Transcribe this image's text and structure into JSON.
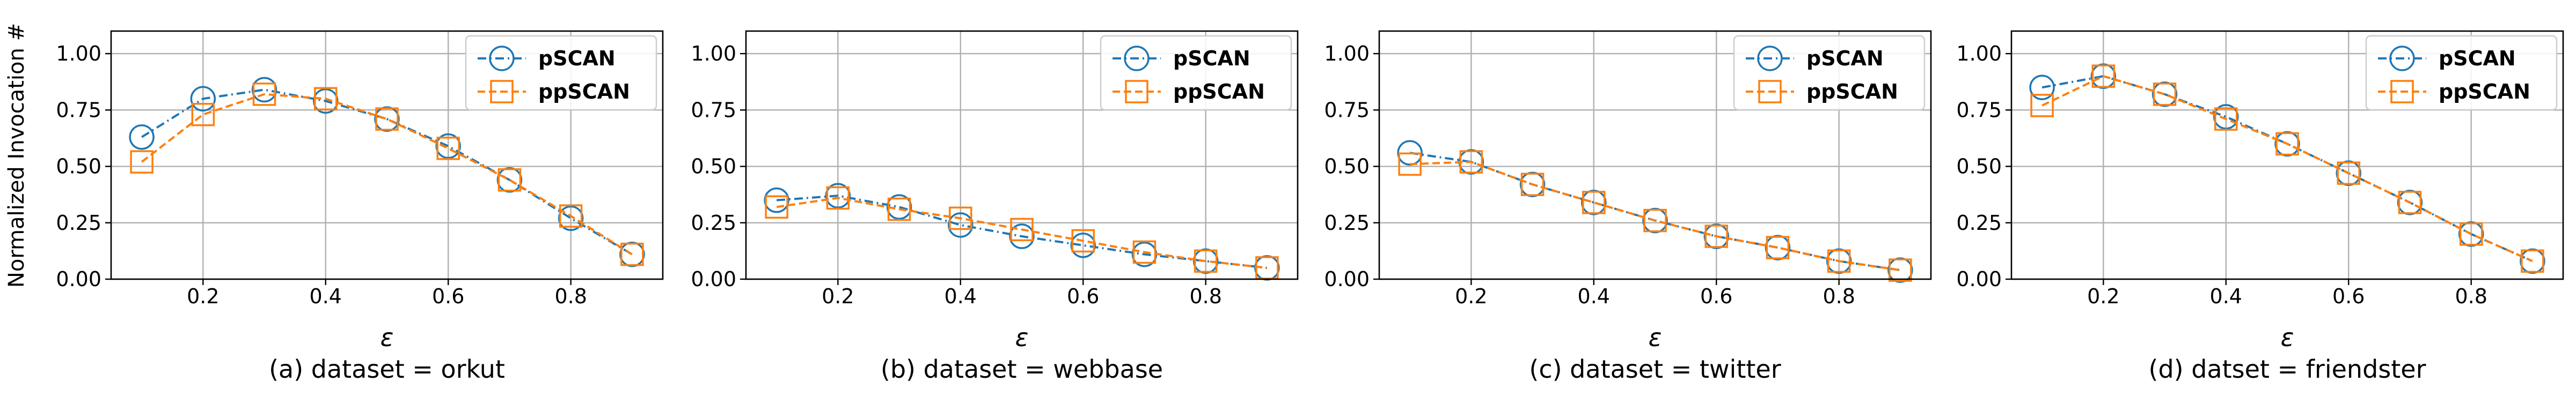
{
  "figure": {
    "ylabel": "Normalized Invocation #",
    "xlabel": "ε"
  },
  "chart_data": [
    {
      "type": "line",
      "caption": "(a) dataset = orkut",
      "xlabel": "ε",
      "ylabel": "Normalized Invocation #",
      "xlim": [
        0.05,
        0.95
      ],
      "ylim": [
        0,
        1.1
      ],
      "x_ticks": [
        "0.2",
        "0.4",
        "0.6",
        "0.8"
      ],
      "y_ticks": [
        "0.00",
        "0.25",
        "0.50",
        "0.75",
        "1.00"
      ],
      "grid": true,
      "legend_position": "top-right",
      "x": [
        0.1,
        0.2,
        0.3,
        0.4,
        0.5,
        0.6,
        0.7,
        0.8,
        0.9
      ],
      "series": [
        {
          "name": "pSCAN",
          "color": "#1f77b4",
          "marker": "circle",
          "linestyle": "dash-dot",
          "values": [
            0.63,
            0.8,
            0.84,
            0.79,
            0.71,
            0.59,
            0.44,
            0.27,
            0.11
          ]
        },
        {
          "name": "ppSCAN",
          "color": "#ff7f0e",
          "marker": "square",
          "linestyle": "dashed",
          "values": [
            0.52,
            0.73,
            0.82,
            0.8,
            0.71,
            0.58,
            0.44,
            0.28,
            0.11
          ]
        }
      ]
    },
    {
      "type": "line",
      "caption": "(b) dataset = webbase",
      "xlabel": "ε",
      "xlim": [
        0.05,
        0.95
      ],
      "ylim": [
        0,
        1.1
      ],
      "x_ticks": [
        "0.2",
        "0.4",
        "0.6",
        "0.8"
      ],
      "y_ticks": [
        "0.00",
        "0.25",
        "0.50",
        "0.75",
        "1.00"
      ],
      "grid": true,
      "legend_position": "top-right",
      "x": [
        0.1,
        0.2,
        0.3,
        0.4,
        0.5,
        0.6,
        0.7,
        0.8,
        0.9
      ],
      "series": [
        {
          "name": "pSCAN",
          "color": "#1f77b4",
          "marker": "circle",
          "linestyle": "dash-dot",
          "values": [
            0.35,
            0.37,
            0.32,
            0.24,
            0.19,
            0.15,
            0.11,
            0.08,
            0.05
          ]
        },
        {
          "name": "ppSCAN",
          "color": "#ff7f0e",
          "marker": "square",
          "linestyle": "dashed",
          "values": [
            0.32,
            0.36,
            0.31,
            0.27,
            0.22,
            0.17,
            0.12,
            0.08,
            0.05
          ]
        }
      ]
    },
    {
      "type": "line",
      "caption": "(c) dataset = twitter",
      "xlabel": "ε",
      "xlim": [
        0.05,
        0.95
      ],
      "ylim": [
        0,
        1.1
      ],
      "x_ticks": [
        "0.2",
        "0.4",
        "0.6",
        "0.8"
      ],
      "y_ticks": [
        "0.00",
        "0.25",
        "0.50",
        "0.75",
        "1.00"
      ],
      "grid": true,
      "legend_position": "top-right",
      "x": [
        0.1,
        0.2,
        0.3,
        0.4,
        0.5,
        0.6,
        0.7,
        0.8,
        0.9
      ],
      "series": [
        {
          "name": "pSCAN",
          "color": "#1f77b4",
          "marker": "circle",
          "linestyle": "dash-dot",
          "values": [
            0.56,
            0.52,
            0.42,
            0.34,
            0.26,
            0.19,
            0.14,
            0.08,
            0.04
          ]
        },
        {
          "name": "ppSCAN",
          "color": "#ff7f0e",
          "marker": "square",
          "linestyle": "dashed",
          "values": [
            0.51,
            0.52,
            0.42,
            0.34,
            0.26,
            0.19,
            0.14,
            0.08,
            0.04
          ]
        }
      ]
    },
    {
      "type": "line",
      "caption": "(d) datset = friendster",
      "xlabel": "ε",
      "xlim": [
        0.05,
        0.95
      ],
      "ylim": [
        0,
        1.1
      ],
      "x_ticks": [
        "0.2",
        "0.4",
        "0.6",
        "0.8"
      ],
      "y_ticks": [
        "0.00",
        "0.25",
        "0.50",
        "0.75",
        "1.00"
      ],
      "grid": true,
      "legend_position": "top-right",
      "x": [
        0.1,
        0.2,
        0.3,
        0.4,
        0.5,
        0.6,
        0.7,
        0.8,
        0.9
      ],
      "series": [
        {
          "name": "pSCAN",
          "color": "#1f77b4",
          "marker": "circle",
          "linestyle": "dash-dot",
          "values": [
            0.85,
            0.9,
            0.82,
            0.72,
            0.6,
            0.47,
            0.34,
            0.2,
            0.08
          ]
        },
        {
          "name": "ppSCAN",
          "color": "#ff7f0e",
          "marker": "square",
          "linestyle": "dashed",
          "values": [
            0.77,
            0.9,
            0.82,
            0.71,
            0.6,
            0.47,
            0.34,
            0.2,
            0.08
          ]
        }
      ]
    }
  ]
}
